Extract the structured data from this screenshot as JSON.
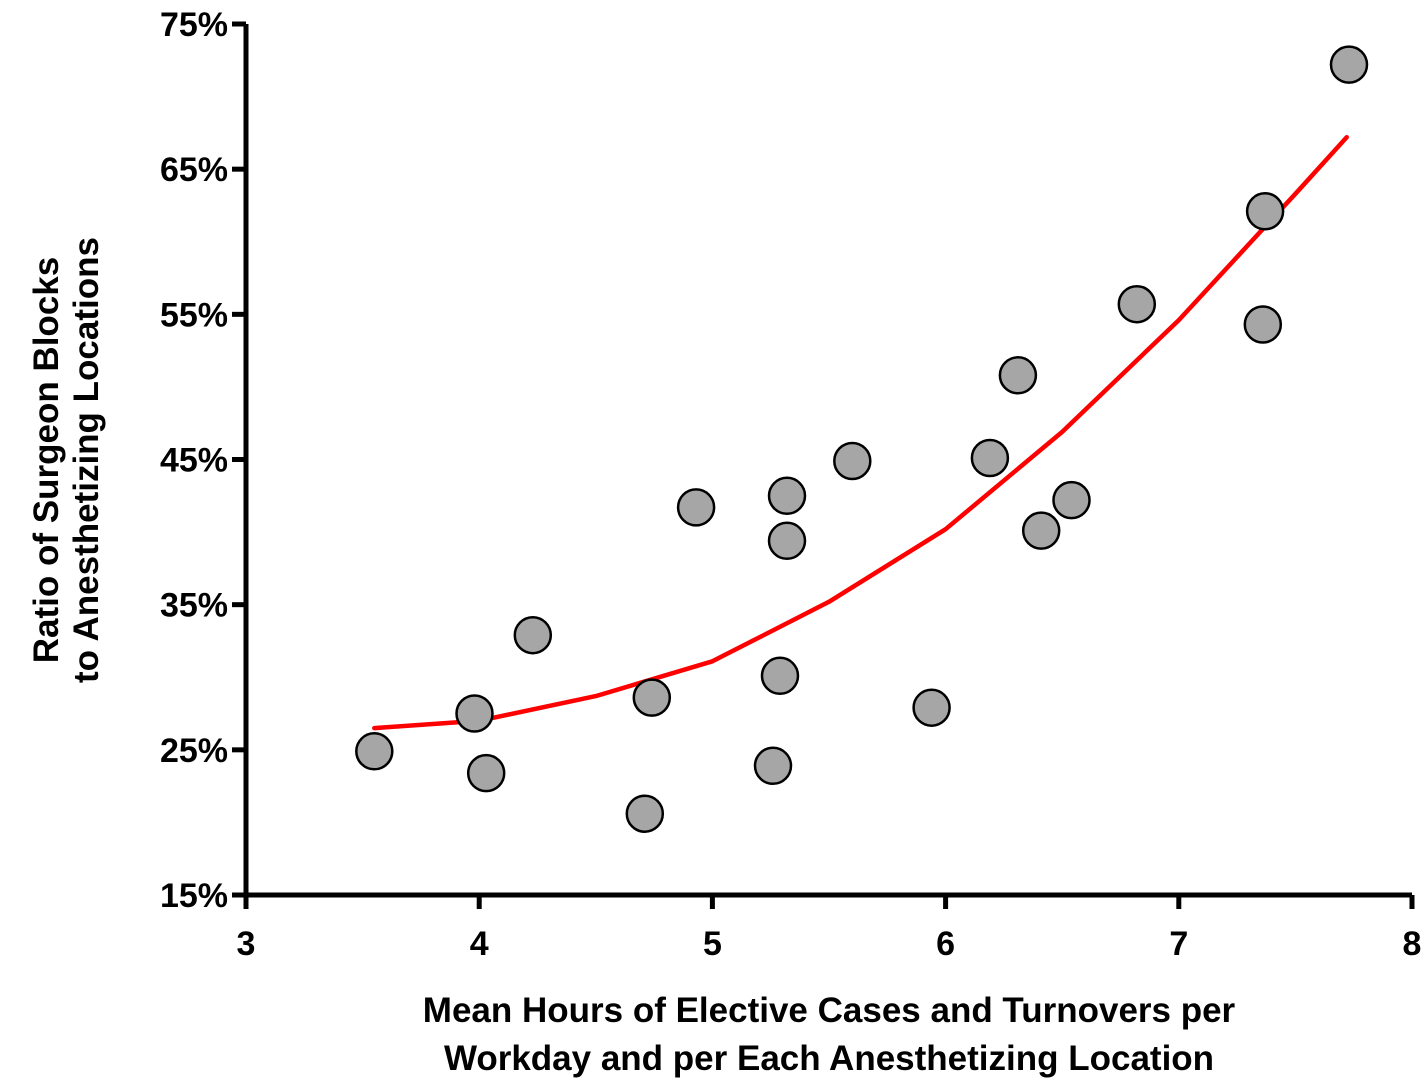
{
  "chart_data": {
    "type": "scatter",
    "xlabel": [
      "Mean Hours of Elective Cases and Turnovers per",
      "Workday and per Each Anesthetizing Location"
    ],
    "ylabel": [
      "Ratio of Surgeon Blocks",
      "to Anesthetizing Locations"
    ],
    "xlim": [
      3,
      8
    ],
    "ylim": [
      15,
      75
    ],
    "x_ticks": [
      3,
      4,
      5,
      6,
      7,
      8
    ],
    "x_tick_labels": [
      "3",
      "4",
      "5",
      "6",
      "7",
      "8"
    ],
    "y_ticks": [
      15,
      25,
      35,
      45,
      55,
      65,
      75
    ],
    "y_tick_labels": [
      "15%",
      "25%",
      "35%",
      "45%",
      "55%",
      "65%",
      "75%"
    ],
    "grid": false,
    "legend": "none",
    "series": [
      {
        "marker": "circle",
        "points": [
          {
            "x": 3.55,
            "y": 24.9
          },
          {
            "x": 3.98,
            "y": 27.5
          },
          {
            "x": 4.03,
            "y": 23.4
          },
          {
            "x": 4.23,
            "y": 32.9
          },
          {
            "x": 4.71,
            "y": 20.6
          },
          {
            "x": 4.74,
            "y": 28.6
          },
          {
            "x": 4.93,
            "y": 41.7
          },
          {
            "x": 5.26,
            "y": 23.9
          },
          {
            "x": 5.29,
            "y": 30.1
          },
          {
            "x": 5.32,
            "y": 39.4
          },
          {
            "x": 5.32,
            "y": 42.5
          },
          {
            "x": 5.6,
            "y": 44.9
          },
          {
            "x": 5.94,
            "y": 27.9
          },
          {
            "x": 6.19,
            "y": 45.1
          },
          {
            "x": 6.31,
            "y": 50.8
          },
          {
            "x": 6.41,
            "y": 40.1
          },
          {
            "x": 6.54,
            "y": 42.2
          },
          {
            "x": 6.82,
            "y": 55.7
          },
          {
            "x": 7.36,
            "y": 54.3
          },
          {
            "x": 7.37,
            "y": 62.1
          },
          {
            "x": 7.73,
            "y": 72.2
          }
        ]
      },
      {
        "type": "line",
        "style": "trendline",
        "x": [
          3.55,
          4.0,
          4.5,
          5.0,
          5.5,
          6.0,
          6.5,
          7.0,
          7.5,
          7.72
        ],
        "y": [
          26.5,
          27.0,
          28.7,
          31.1,
          35.2,
          40.2,
          46.9,
          54.6,
          63.3,
          67.2
        ]
      }
    ],
    "colors": {
      "point_fill": "#a6a6a6",
      "point_stroke": "#000000",
      "trendline": "#ff0000",
      "axis": "#000000"
    }
  }
}
